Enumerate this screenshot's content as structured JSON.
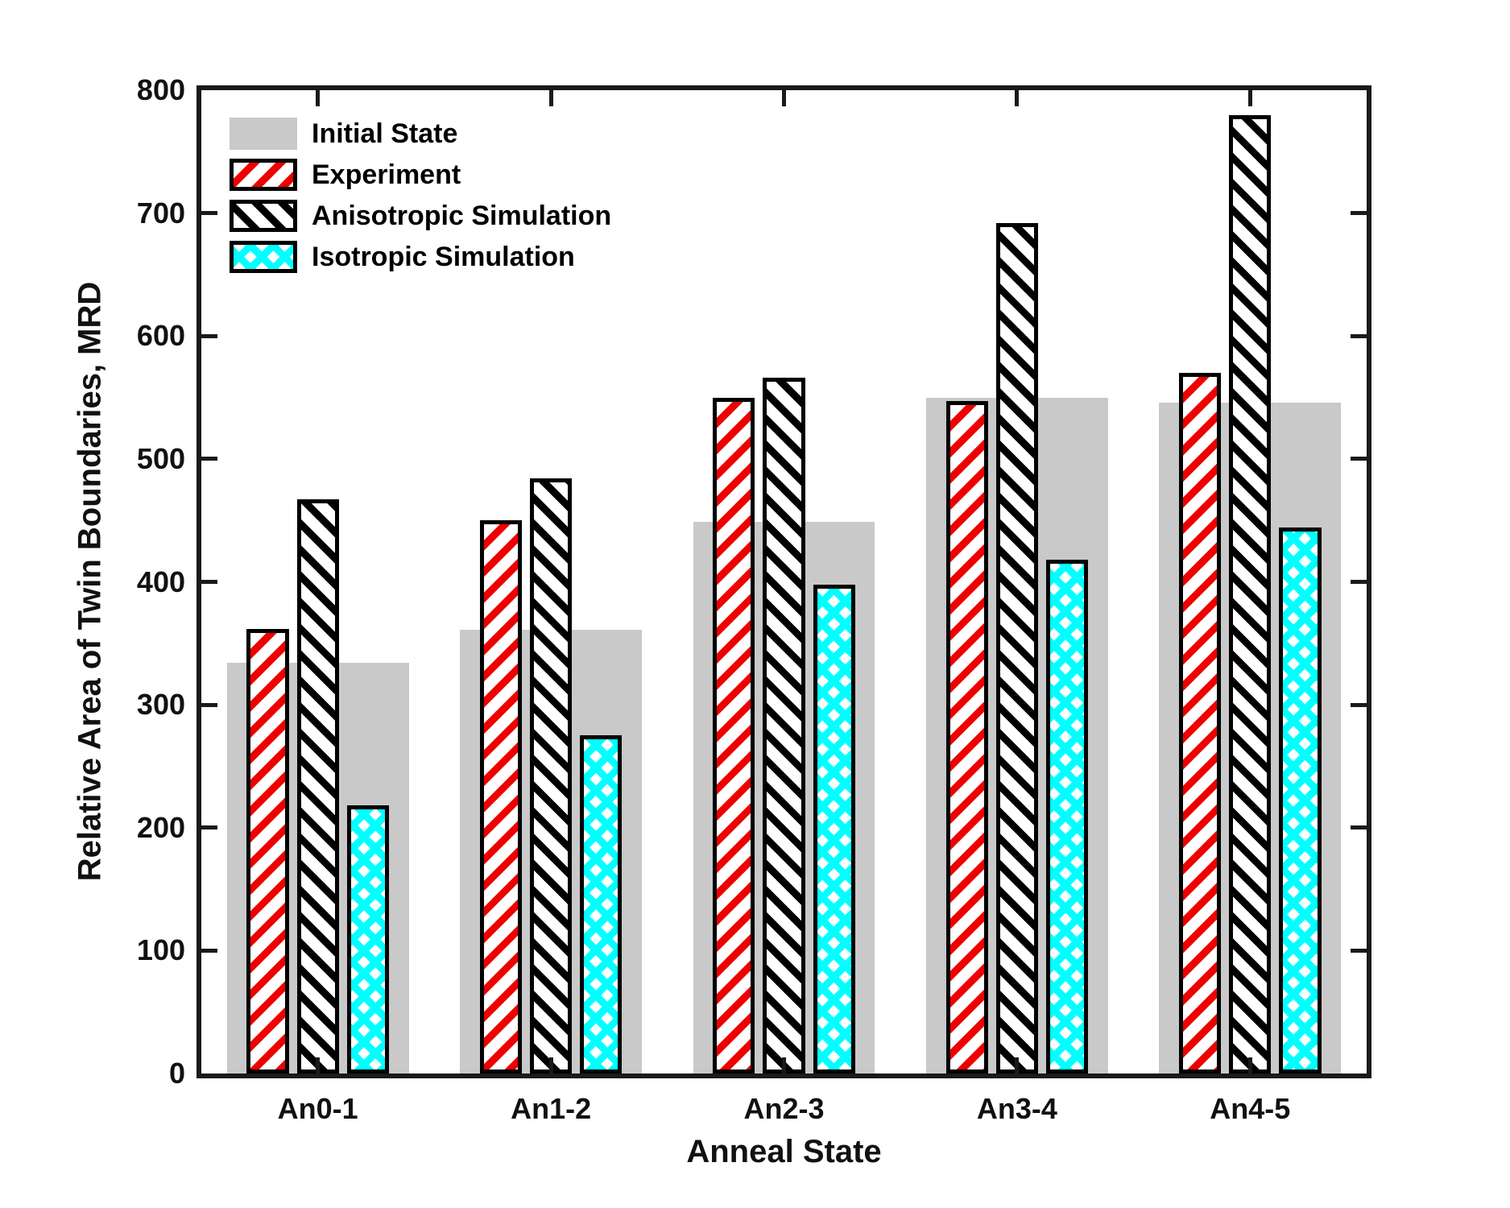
{
  "chart_data": {
    "type": "bar",
    "title": "",
    "xlabel": "Anneal State",
    "ylabel": "Relative Area of Twin Boundaries, MRD",
    "ylim": [
      0,
      800
    ],
    "ytick_step": 100,
    "ytick_labels": [
      "0",
      "100",
      "200",
      "300",
      "400",
      "500",
      "600",
      "700",
      "800"
    ],
    "grid": false,
    "legend_position": "top-left-inside",
    "categories": [
      "An0-1",
      "An1-2",
      "An2-3",
      "An3-4",
      "An4-5"
    ],
    "series": [
      {
        "name": "Initial State",
        "style": "initial-state",
        "values": [
          334,
          361,
          449,
          550,
          546
        ]
      },
      {
        "name": "Experiment",
        "style": "experiment",
        "values": [
          362,
          450,
          550,
          547,
          570
        ]
      },
      {
        "name": "Anisotropic Simulation",
        "style": "anisotropic-simulation",
        "values": [
          467,
          484,
          566,
          692,
          780
        ]
      },
      {
        "name": "Isotropic Simulation",
        "style": "isotropic-simulation",
        "values": [
          218,
          275,
          398,
          418,
          444
        ]
      }
    ]
  },
  "colors": {
    "initial_state_fill": "#c9c9c9",
    "experiment_hatch": "#ee0000",
    "anisotropic_hatch": "#000000",
    "isotropic_hatch": "#00ffff",
    "bar_border": "#000000",
    "axis": "#1a1a1a",
    "background": "#ffffff"
  }
}
